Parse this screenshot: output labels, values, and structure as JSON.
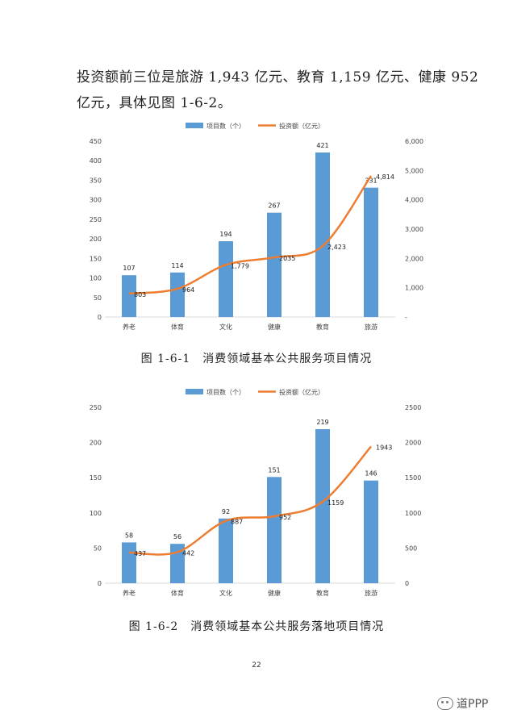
{
  "paragraph": {
    "line1": "投资额前三位是旅游 1,943 亿元、教育 1,159 亿元、健康 952",
    "line2": "亿元，具体见图 1-6-2。"
  },
  "captions": {
    "fig1": "图 1-6-1　消费领域基本公共服务项目情况",
    "fig2": "图 1-6-2　消费领域基本公共服务落地项目情况"
  },
  "page_number": "22",
  "watermark": "道PPP",
  "colors": {
    "bar": "#5B9BD5",
    "line": "#ED7D31",
    "grid": "#D9D9D9"
  },
  "chart_data": [
    {
      "type": "bar",
      "categories": [
        "养老",
        "体育",
        "文化",
        "健康",
        "教育",
        "旅游"
      ],
      "series": [
        {
          "name": "项目数（个）",
          "kind": "bar",
          "axis": "left",
          "values": [
            107,
            114,
            194,
            267,
            421,
            331
          ],
          "labels": [
            "107",
            "114",
            "194",
            "267",
            "421",
            "331"
          ]
        },
        {
          "name": "投资额（亿元）",
          "kind": "line",
          "axis": "right",
          "values": [
            803,
            964,
            1779,
            2035,
            2423,
            4814
          ],
          "labels": [
            "803",
            "964",
            "1,779",
            "2035",
            "2,423",
            "4,814"
          ]
        }
      ],
      "left_axis": {
        "ylim": [
          0,
          450
        ],
        "ticks": [
          "0",
          "50",
          "100",
          "150",
          "200",
          "250",
          "300",
          "350",
          "400",
          "450"
        ]
      },
      "right_axis": {
        "ylim": [
          0,
          6000
        ],
        "ticks": [
          "-",
          "1,000",
          "2,000",
          "3,000",
          "4,000",
          "5,000",
          "6,000"
        ]
      },
      "grid": false,
      "legend": "top-center"
    },
    {
      "type": "bar",
      "categories": [
        "养老",
        "体育",
        "文化",
        "健康",
        "教育",
        "旅游"
      ],
      "series": [
        {
          "name": "项目数（个）",
          "kind": "bar",
          "axis": "left",
          "values": [
            58,
            56,
            92,
            151,
            219,
            146
          ],
          "labels": [
            "58",
            "56",
            "92",
            "151",
            "219",
            "146"
          ]
        },
        {
          "name": "投资额（亿元）",
          "kind": "line",
          "axis": "right",
          "values": [
            437,
            442,
            887,
            952,
            1159,
            1943
          ],
          "labels": [
            "437",
            "442",
            "887",
            "952",
            "1159",
            "1943"
          ]
        }
      ],
      "left_axis": {
        "ylim": [
          0,
          250
        ],
        "ticks": [
          "0",
          "50",
          "100",
          "150",
          "200",
          "250"
        ]
      },
      "right_axis": {
        "ylim": [
          0,
          2500
        ],
        "ticks": [
          "0",
          "500",
          "1000",
          "1500",
          "2000",
          "2500"
        ]
      },
      "grid": false,
      "legend": "top-center"
    }
  ]
}
